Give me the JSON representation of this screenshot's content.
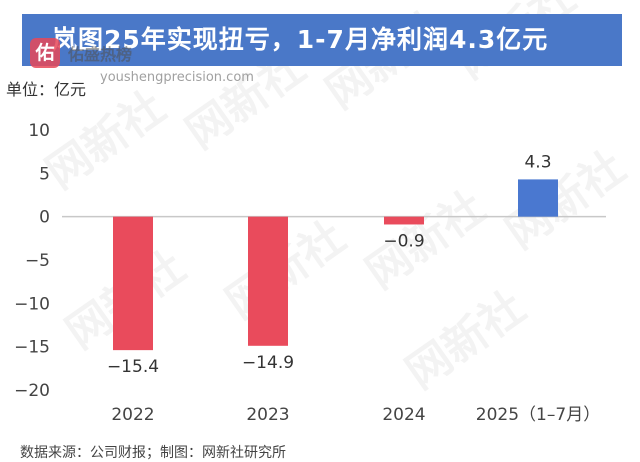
{
  "title": "岚图25年实现扭亏，1-7月净利润4.3亿元",
  "brand": {
    "logo_char": "佑",
    "name": "佑盛热榜",
    "url": "youshengprecision.com"
  },
  "unit_label": "单位：亿元",
  "footer": "数据来源：公司财报；制图：网新社研究所",
  "watermark": "网新社",
  "colors": {
    "title_bg": "#4a78c8",
    "negative": "#e94b5c",
    "positive": "#4a78d0"
  },
  "chart_data": {
    "type": "bar",
    "categories": [
      "2022",
      "2023",
      "2024",
      "2025（1–7月）"
    ],
    "values": [
      -15.4,
      -14.9,
      -0.9,
      4.3
    ],
    "data_labels": [
      "−15.4",
      "−14.9",
      "−0.9",
      "4.3"
    ],
    "ylim": [
      -20,
      10
    ],
    "yticks": [
      10,
      5,
      0,
      -5,
      -10,
      -15,
      -20
    ],
    "ytick_labels": [
      "10",
      "5",
      "0",
      "−5",
      "−10",
      "−15",
      "−20"
    ],
    "grid": false
  }
}
